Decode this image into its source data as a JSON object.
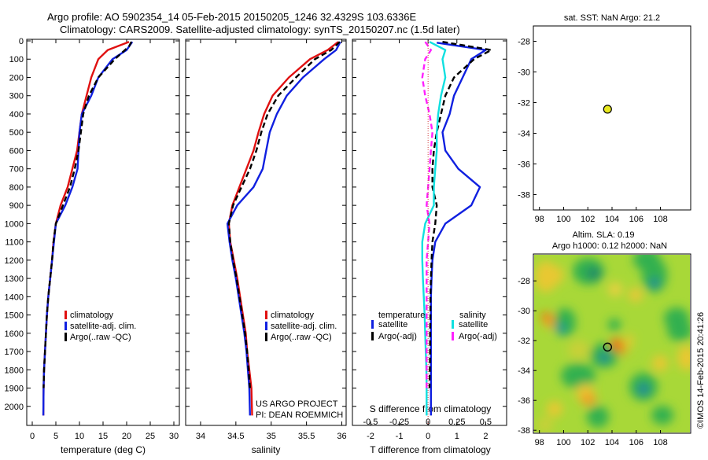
{
  "title_line1": "Argo profile: AO 5902354_14 05-Feb-2015 20150205_1246 32.4329S 103.6336E",
  "title_line2": "Climatology: CARS2009. Satellite-adjusted climatology: synTS_20150207.nc (1.5d later)",
  "credit": "©IMOS 14-Feb-2015 20:41:26",
  "project_line1": "US ARGO PROJECT",
  "project_line2": "PI: DEAN ROEMMICH",
  "colors": {
    "red": "#e01010",
    "blue": "#1020e0",
    "black": "#000000",
    "cyan": "#10e0e0",
    "magenta": "#ff20ff",
    "yellow_dot": "#e8e820"
  },
  "chart_data": [
    {
      "type": "line",
      "panel": "temperature",
      "xlabel": "temperature (deg C)",
      "ylabel": "",
      "xlim": [
        -1,
        31
      ],
      "ylim": [
        2100,
        0
      ],
      "xticks": [
        "0",
        "5",
        "10",
        "15",
        "20",
        "25",
        "30"
      ],
      "yticks": [
        "0",
        "100",
        "200",
        "300",
        "400",
        "500",
        "600",
        "700",
        "800",
        "900",
        "1000",
        "1100",
        "1200",
        "1300",
        "1400",
        "1500",
        "1600",
        "1700",
        "1800",
        "1900",
        "2000"
      ],
      "legend": [
        "climatology",
        "satellite-adj. clim.",
        "Argo(..raw -QC)"
      ],
      "series": [
        {
          "name": "climatology",
          "color": "#e01010",
          "x": [
            20.5,
            16,
            14,
            12.5,
            11.5,
            10.5,
            10,
            9.5,
            8.5,
            7.5,
            6,
            5,
            4.5,
            4.2,
            3.8,
            3.4,
            3.1,
            2.9,
            2.7,
            2.5,
            2.4,
            2.35
          ],
          "y": [
            5,
            50,
            100,
            200,
            300,
            400,
            500,
            600,
            700,
            800,
            900,
            1000,
            1100,
            1200,
            1300,
            1400,
            1500,
            1600,
            1700,
            1800,
            1900,
            2050
          ]
        },
        {
          "name": "satellite-adj. clim.",
          "color": "#1020e0",
          "x": [
            21.2,
            20,
            17,
            14,
            12.5,
            10.5,
            10,
            9.8,
            9.6,
            8.5,
            7,
            5,
            4.6,
            4.2,
            3.8,
            3.4,
            3.1,
            2.9,
            2.7,
            2.5,
            2.4,
            2.35
          ],
          "y": [
            5,
            50,
            100,
            200,
            300,
            400,
            500,
            600,
            700,
            800,
            900,
            1000,
            1100,
            1200,
            1300,
            1400,
            1500,
            1600,
            1700,
            1800,
            1900,
            2050
          ]
        },
        {
          "name": "Argo(..raw -QC)",
          "color": "#000000",
          "dashed": true,
          "x": [
            21,
            20.5,
            17.5,
            14,
            12,
            10.8,
            10.3,
            9.8,
            9,
            8,
            6.5,
            5,
            4.5,
            4.2,
            3.8,
            3.4,
            3.1,
            2.9,
            2.7,
            2.5,
            2.4
          ],
          "y": [
            5,
            30,
            100,
            200,
            300,
            400,
            500,
            600,
            700,
            800,
            900,
            1000,
            1100,
            1200,
            1300,
            1400,
            1500,
            1600,
            1700,
            1800,
            1900
          ]
        }
      ]
    },
    {
      "type": "line",
      "panel": "salinity",
      "xlabel": "salinity",
      "ylabel": "",
      "xlim": [
        33.8,
        36.05
      ],
      "ylim": [
        2100,
        0
      ],
      "xticks": [
        "34",
        "34.5",
        "35",
        "35.5",
        "36"
      ],
      "legend": [
        "climatology",
        "satellite-adj. clim.",
        "Argo(..raw -QC)"
      ],
      "series": [
        {
          "name": "climatology",
          "color": "#e01010",
          "x": [
            35.95,
            35.8,
            35.55,
            35.25,
            35.02,
            34.9,
            34.82,
            34.75,
            34.65,
            34.55,
            34.45,
            34.4,
            34.42,
            34.47,
            34.52,
            34.56,
            34.6,
            34.64,
            34.66,
            34.69,
            34.72,
            34.73
          ],
          "y": [
            5,
            50,
            100,
            200,
            300,
            400,
            500,
            600,
            700,
            800,
            900,
            1000,
            1100,
            1200,
            1300,
            1400,
            1500,
            1600,
            1700,
            1800,
            1900,
            2050
          ]
        },
        {
          "name": "satellite-adj. clim.",
          "color": "#1020e0",
          "x": [
            35.98,
            35.92,
            35.75,
            35.45,
            35.22,
            35.08,
            34.98,
            34.93,
            34.88,
            34.75,
            34.52,
            34.38,
            34.41,
            34.45,
            34.5,
            34.54,
            34.58,
            34.62,
            34.65,
            34.67,
            34.69,
            34.7
          ],
          "y": [
            5,
            50,
            100,
            200,
            300,
            400,
            500,
            600,
            700,
            800,
            900,
            1000,
            1100,
            1200,
            1300,
            1400,
            1500,
            1600,
            1700,
            1800,
            1900,
            2050
          ]
        },
        {
          "name": "Argo(..raw -QC)",
          "color": "#000000",
          "dashed": true,
          "x": [
            35.97,
            35.85,
            35.62,
            35.35,
            35.1,
            34.95,
            34.86,
            34.79,
            34.7,
            34.58,
            34.46,
            34.4,
            34.42,
            34.46,
            34.51,
            34.55,
            34.59,
            34.63,
            34.66,
            34.68,
            34.7
          ],
          "y": [
            5,
            50,
            100,
            200,
            300,
            400,
            500,
            600,
            700,
            800,
            900,
            1000,
            1100,
            1200,
            1300,
            1400,
            1500,
            1600,
            1700,
            1800,
            1900
          ]
        }
      ]
    },
    {
      "type": "line",
      "panel": "difference",
      "xlabel": "T difference from climatology",
      "xlabel_top": "S difference from climatology",
      "xlim": [
        -2.6,
        2.7
      ],
      "ylim": [
        2100,
        0
      ],
      "xticks": [
        "-2",
        "-1",
        "0",
        "1",
        "2"
      ],
      "xticks_s": [
        "-0.5",
        "-0.25",
        "0",
        "0.25",
        "0.5"
      ],
      "legend_headers": [
        "temperature",
        "salinity"
      ],
      "legend": [
        "satellite",
        "Argo(-adj)",
        "satellite",
        "Argo(-adj)"
      ],
      "series": [
        {
          "name": "satellite",
          "quantity": "temperature",
          "color": "#1020e0",
          "x": [
            0.3,
            2,
            1.5,
            1.2,
            0.9,
            0.75,
            0.5,
            0.6,
            1.05,
            1.8,
            1.5,
            0.6,
            0.25,
            0.15,
            0.12,
            0.1,
            0.1,
            0.1,
            0.1,
            0.1,
            0.1,
            0.1
          ],
          "y": [
            10,
            50,
            100,
            200,
            300,
            400,
            500,
            600,
            700,
            800,
            900,
            1000,
            1100,
            1200,
            1300,
            1400,
            1500,
            1600,
            1700,
            1800,
            1900,
            2050
          ]
        },
        {
          "name": "Argo(-adj)",
          "quantity": "temperature",
          "color": "#000000",
          "dashed": true,
          "x": [
            0.5,
            2.2,
            1.6,
            0.9,
            0.6,
            0.45,
            0.3,
            0.2,
            0.15,
            0.15,
            0.3,
            0.25,
            0.15,
            0.12,
            0.1,
            0.08,
            0.08,
            0.07,
            0.07,
            0.06,
            0.05
          ],
          "y": [
            5,
            50,
            100,
            200,
            300,
            400,
            500,
            600,
            700,
            800,
            900,
            1000,
            1100,
            1200,
            1300,
            1400,
            1500,
            1600,
            1700,
            1800,
            1900
          ]
        },
        {
          "name": "satellite",
          "quantity": "salinity",
          "color": "#10e0e0",
          "x": [
            0.05,
            0.6,
            0.5,
            0.6,
            0.45,
            0.35,
            0.3,
            0.3,
            0.25,
            0.2,
            0.2,
            -0.1,
            -0.2,
            -0.2,
            -0.18,
            -0.15,
            -0.12,
            -0.1,
            -0.08,
            -0.06,
            -0.05,
            -0.05
          ],
          "y": [
            5,
            50,
            100,
            200,
            300,
            400,
            500,
            600,
            700,
            800,
            900,
            1000,
            1100,
            1200,
            1300,
            1400,
            1500,
            1600,
            1700,
            1800,
            1900,
            2050
          ]
        },
        {
          "name": "Argo(-adj)",
          "quantity": "salinity",
          "color": "#ff20ff",
          "dashed": true,
          "x": [
            -0.1,
            0.1,
            -0.1,
            -0.2,
            -0.1,
            0.05,
            0.15,
            0.1,
            0.05,
            0.0,
            -0.05,
            0.05,
            0.0,
            -0.05,
            -0.05,
            -0.05,
            -0.05,
            -0.05,
            -0.05,
            -0.05,
            -0.05
          ],
          "y": [
            5,
            50,
            100,
            200,
            300,
            400,
            500,
            600,
            700,
            800,
            900,
            1000,
            1100,
            1200,
            1300,
            1400,
            1500,
            1600,
            1700,
            1800,
            1900
          ]
        }
      ]
    },
    {
      "type": "scatter",
      "panel": "sst_map",
      "title": "sat. SST: NaN Argo: 21.2",
      "xlim": [
        97.5,
        110.5
      ],
      "ylim": [
        -39,
        -27
      ],
      "xticks": [
        "98",
        "100",
        "102",
        "104",
        "106",
        "108"
      ],
      "yticks": [
        "-28",
        "-30",
        "-32",
        "-34",
        "-36",
        "-38"
      ],
      "points": [
        {
          "x": 103.63,
          "y": -32.43
        }
      ]
    },
    {
      "type": "heatmap",
      "panel": "sla_map",
      "title_line1": "Altim. SLA: 0.19",
      "title_line2": "Argo h1000: 0.12 h2000: NaN",
      "xlim": [
        97.5,
        110.5
      ],
      "ylim": [
        -38.2,
        -26.2
      ],
      "xticks": [
        "98",
        "100",
        "102",
        "104",
        "106",
        "108"
      ],
      "yticks": [
        "-28",
        "-30",
        "-32",
        "-34",
        "-36",
        "-38"
      ],
      "points": [
        {
          "x": 103.63,
          "y": -32.43
        }
      ]
    }
  ]
}
